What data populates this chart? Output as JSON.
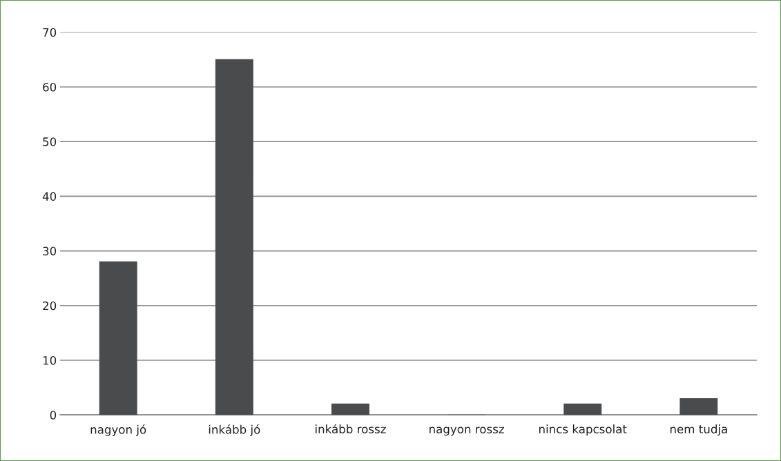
{
  "chart_data": {
    "type": "bar",
    "categories": [
      "nagyon jó",
      "inkább jó",
      "inkább rossz",
      "nagyon rossz",
      "nincs kapcsolat",
      "nem tudja"
    ],
    "values": [
      28,
      65,
      2,
      0,
      2,
      3
    ],
    "color": "#4a4b4d",
    "ylim": [
      0,
      70
    ],
    "yticks": [
      0,
      10,
      20,
      30,
      40,
      50,
      60,
      70
    ],
    "grid": "y"
  }
}
